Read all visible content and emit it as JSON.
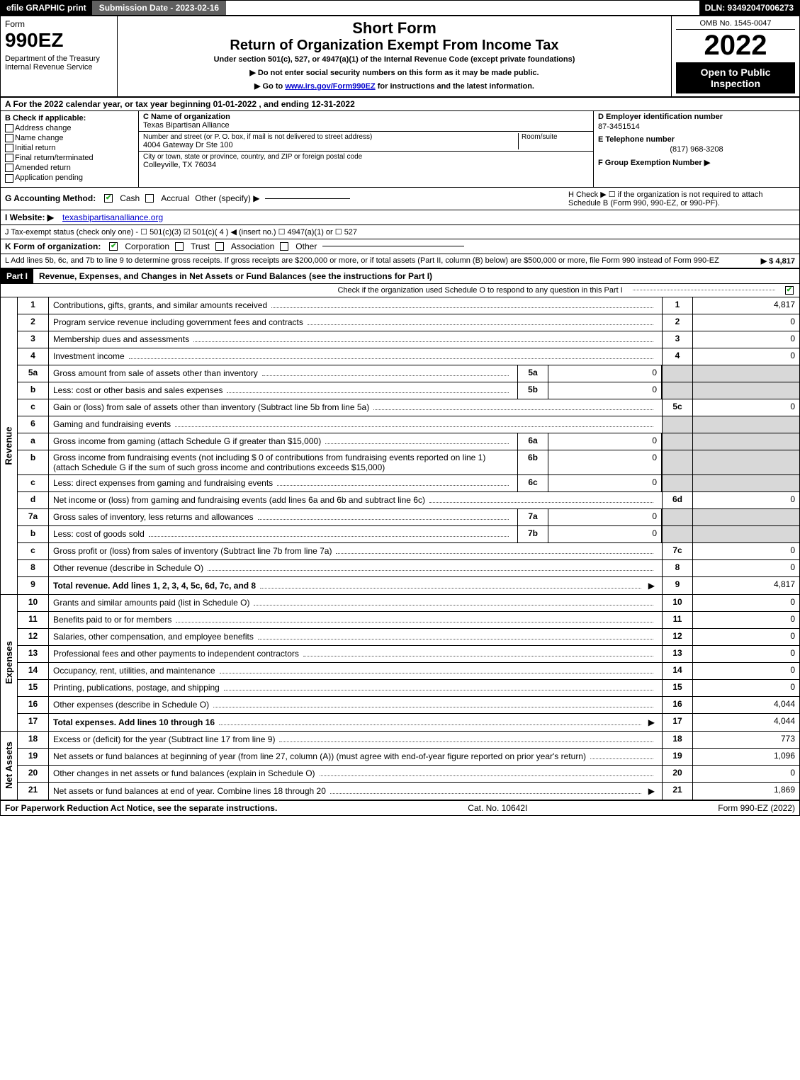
{
  "topbar": {
    "efile": "efile GRAPHIC print",
    "subdate": "Submission Date - 2023-02-16",
    "dln": "DLN: 93492047006273"
  },
  "header": {
    "form_label": "Form",
    "form_num": "990EZ",
    "dept": "Department of the Treasury\nInternal Revenue Service",
    "t1": "Short Form",
    "t2": "Return of Organization Exempt From Income Tax",
    "sub": "Under section 501(c), 527, or 4947(a)(1) of the Internal Revenue Code (except private foundations)",
    "note1": "▶ Do not enter social security numbers on this form as it may be made public.",
    "note2_prefix": "▶ Go to ",
    "note2_link": "www.irs.gov/Form990EZ",
    "note2_suffix": " for instructions and the latest information.",
    "omb": "OMB No. 1545-0047",
    "year": "2022",
    "open": "Open to Public Inspection"
  },
  "row_a": "A  For the 2022 calendar year, or tax year beginning 01-01-2022 , and ending 12-31-2022",
  "sec_b": {
    "title": "B  Check if applicable:",
    "opts": [
      "Address change",
      "Name change",
      "Initial return",
      "Final return/terminated",
      "Amended return",
      "Application pending"
    ]
  },
  "sec_c": {
    "name_lbl": "C Name of organization",
    "name": "Texas Bipartisan Alliance",
    "street_lbl": "Number and street (or P. O. box, if mail is not delivered to street address)",
    "room_lbl": "Room/suite",
    "street": "4004 Gateway Dr Ste 100",
    "city_lbl": "City or town, state or province, country, and ZIP or foreign postal code",
    "city": "Colleyville, TX  76034"
  },
  "sec_d": {
    "ein_lbl": "D Employer identification number",
    "ein": "87-3451514",
    "phone_lbl": "E Telephone number",
    "phone": "(817) 968-3208",
    "group_lbl": "F Group Exemption Number ▶"
  },
  "row_g": {
    "lbl": "G Accounting Method:",
    "opts": [
      "Cash",
      "Accrual",
      "Other (specify) ▶"
    ],
    "checked": 0
  },
  "row_h": "H  Check ▶ ☐ if the organization is not required to attach Schedule B (Form 990, 990-EZ, or 990-PF).",
  "row_i": {
    "lbl": "I Website: ▶",
    "link": "texasbipartisanalliance.org"
  },
  "row_j": "J Tax-exempt status (check only one) - ☐ 501(c)(3)  ☑ 501(c)( 4 ) ◀ (insert no.)  ☐ 4947(a)(1) or  ☐ 527",
  "row_k": {
    "lbl": "K Form of organization:",
    "opts": [
      "Corporation",
      "Trust",
      "Association",
      "Other"
    ],
    "checked": 0
  },
  "row_l": {
    "text": "L Add lines 5b, 6c, and 7b to line 9 to determine gross receipts. If gross receipts are $200,000 or more, or if total assets (Part II, column (B) below) are $500,000 or more, file Form 990 instead of Form 990-EZ",
    "val": "▶ $ 4,817"
  },
  "part1": {
    "head": "Part I",
    "title": "Revenue, Expenses, and Changes in Net Assets or Fund Balances (see the instructions for Part I)",
    "check_line": "Check if the organization used Schedule O to respond to any question in this Part I"
  },
  "revenue_lines": [
    {
      "n": "1",
      "d": "Contributions, gifts, grants, and similar amounts received",
      "ref": "1",
      "v": "4,817"
    },
    {
      "n": "2",
      "d": "Program service revenue including government fees and contracts",
      "ref": "2",
      "v": "0"
    },
    {
      "n": "3",
      "d": "Membership dues and assessments",
      "ref": "3",
      "v": "0"
    },
    {
      "n": "4",
      "d": "Investment income",
      "ref": "4",
      "v": "0"
    },
    {
      "n": "5a",
      "d": "Gross amount from sale of assets other than inventory",
      "sub": "5a",
      "subv": "0",
      "shade": true
    },
    {
      "n": "b",
      "d": "Less: cost or other basis and sales expenses",
      "sub": "5b",
      "subv": "0",
      "shade": true
    },
    {
      "n": "c",
      "d": "Gain or (loss) from sale of assets other than inventory (Subtract line 5b from line 5a)",
      "ref": "5c",
      "v": "0"
    },
    {
      "n": "6",
      "d": "Gaming and fundraising events",
      "shade": true
    },
    {
      "n": "a",
      "d": "Gross income from gaming (attach Schedule G if greater than $15,000)",
      "sub": "6a",
      "subv": "0",
      "shade": true
    },
    {
      "n": "b",
      "d": "Gross income from fundraising events (not including $ 0        of contributions from fundraising events reported on line 1) (attach Schedule G if the sum of such gross income and contributions exceeds $15,000)",
      "sub": "6b",
      "subv": "0",
      "shade": true
    },
    {
      "n": "c",
      "d": "Less: direct expenses from gaming and fundraising events",
      "sub": "6c",
      "subv": "0",
      "shade": true
    },
    {
      "n": "d",
      "d": "Net income or (loss) from gaming and fundraising events (add lines 6a and 6b and subtract line 6c)",
      "ref": "6d",
      "v": "0"
    },
    {
      "n": "7a",
      "d": "Gross sales of inventory, less returns and allowances",
      "sub": "7a",
      "subv": "0",
      "shade": true
    },
    {
      "n": "b",
      "d": "Less: cost of goods sold",
      "sub": "7b",
      "subv": "0",
      "shade": true
    },
    {
      "n": "c",
      "d": "Gross profit or (loss) from sales of inventory (Subtract line 7b from line 7a)",
      "ref": "7c",
      "v": "0"
    },
    {
      "n": "8",
      "d": "Other revenue (describe in Schedule O)",
      "ref": "8",
      "v": "0"
    },
    {
      "n": "9",
      "d": "Total revenue. Add lines 1, 2, 3, 4, 5c, 6d, 7c, and 8",
      "ref": "9",
      "v": "4,817",
      "bold": true,
      "arrow": true
    }
  ],
  "expense_lines": [
    {
      "n": "10",
      "d": "Grants and similar amounts paid (list in Schedule O)",
      "ref": "10",
      "v": "0"
    },
    {
      "n": "11",
      "d": "Benefits paid to or for members",
      "ref": "11",
      "v": "0"
    },
    {
      "n": "12",
      "d": "Salaries, other compensation, and employee benefits",
      "ref": "12",
      "v": "0"
    },
    {
      "n": "13",
      "d": "Professional fees and other payments to independent contractors",
      "ref": "13",
      "v": "0"
    },
    {
      "n": "14",
      "d": "Occupancy, rent, utilities, and maintenance",
      "ref": "14",
      "v": "0"
    },
    {
      "n": "15",
      "d": "Printing, publications, postage, and shipping",
      "ref": "15",
      "v": "0"
    },
    {
      "n": "16",
      "d": "Other expenses (describe in Schedule O)",
      "ref": "16",
      "v": "4,044"
    },
    {
      "n": "17",
      "d": "Total expenses. Add lines 10 through 16",
      "ref": "17",
      "v": "4,044",
      "bold": true,
      "arrow": true
    }
  ],
  "netasset_lines": [
    {
      "n": "18",
      "d": "Excess or (deficit) for the year (Subtract line 17 from line 9)",
      "ref": "18",
      "v": "773"
    },
    {
      "n": "19",
      "d": "Net assets or fund balances at beginning of year (from line 27, column (A)) (must agree with end-of-year figure reported on prior year's return)",
      "ref": "19",
      "v": "1,096"
    },
    {
      "n": "20",
      "d": "Other changes in net assets or fund balances (explain in Schedule O)",
      "ref": "20",
      "v": "0"
    },
    {
      "n": "21",
      "d": "Net assets or fund balances at end of year. Combine lines 18 through 20",
      "ref": "21",
      "v": "1,869",
      "arrow": true
    }
  ],
  "side_labels": {
    "rev": "Revenue",
    "exp": "Expenses",
    "net": "Net Assets"
  },
  "footer": {
    "left": "For Paperwork Reduction Act Notice, see the separate instructions.",
    "mid": "Cat. No. 10642I",
    "right": "Form 990-EZ (2022)"
  },
  "colors": {
    "black": "#000000",
    "white": "#ffffff",
    "gray": "#606060",
    "shade": "#d8d8d8",
    "link": "#0000cc",
    "check": "#22aa22"
  },
  "fonts": {
    "base": "Verdana",
    "base_size": 12
  }
}
